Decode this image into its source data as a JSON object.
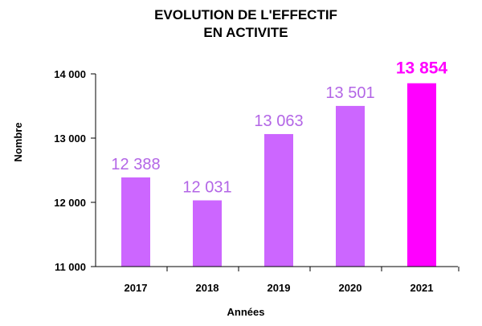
{
  "chart_data": {
    "type": "bar",
    "title_lines": [
      "EVOLUTION DE L'EFFECTIF",
      "EN ACTIVITE"
    ],
    "xlabel": "Années",
    "ylabel": "Nombre",
    "categories": [
      "2017",
      "2018",
      "2019",
      "2020",
      "2021"
    ],
    "values": [
      12388,
      12031,
      13063,
      13501,
      13854
    ],
    "value_labels": [
      "12 388",
      "12 031",
      "13 063",
      "13 501",
      "13 854"
    ],
    "ylim": [
      11000,
      14000
    ],
    "yticks": [
      11000,
      12000,
      13000,
      14000
    ],
    "ytick_labels": [
      "11 000",
      "12 000",
      "13 000",
      "14 000"
    ],
    "grid": false,
    "bar_color": "#cc66ff",
    "highlight_color": "#ff00ff",
    "highlight_index": 4,
    "label_color": "#b366e6"
  }
}
